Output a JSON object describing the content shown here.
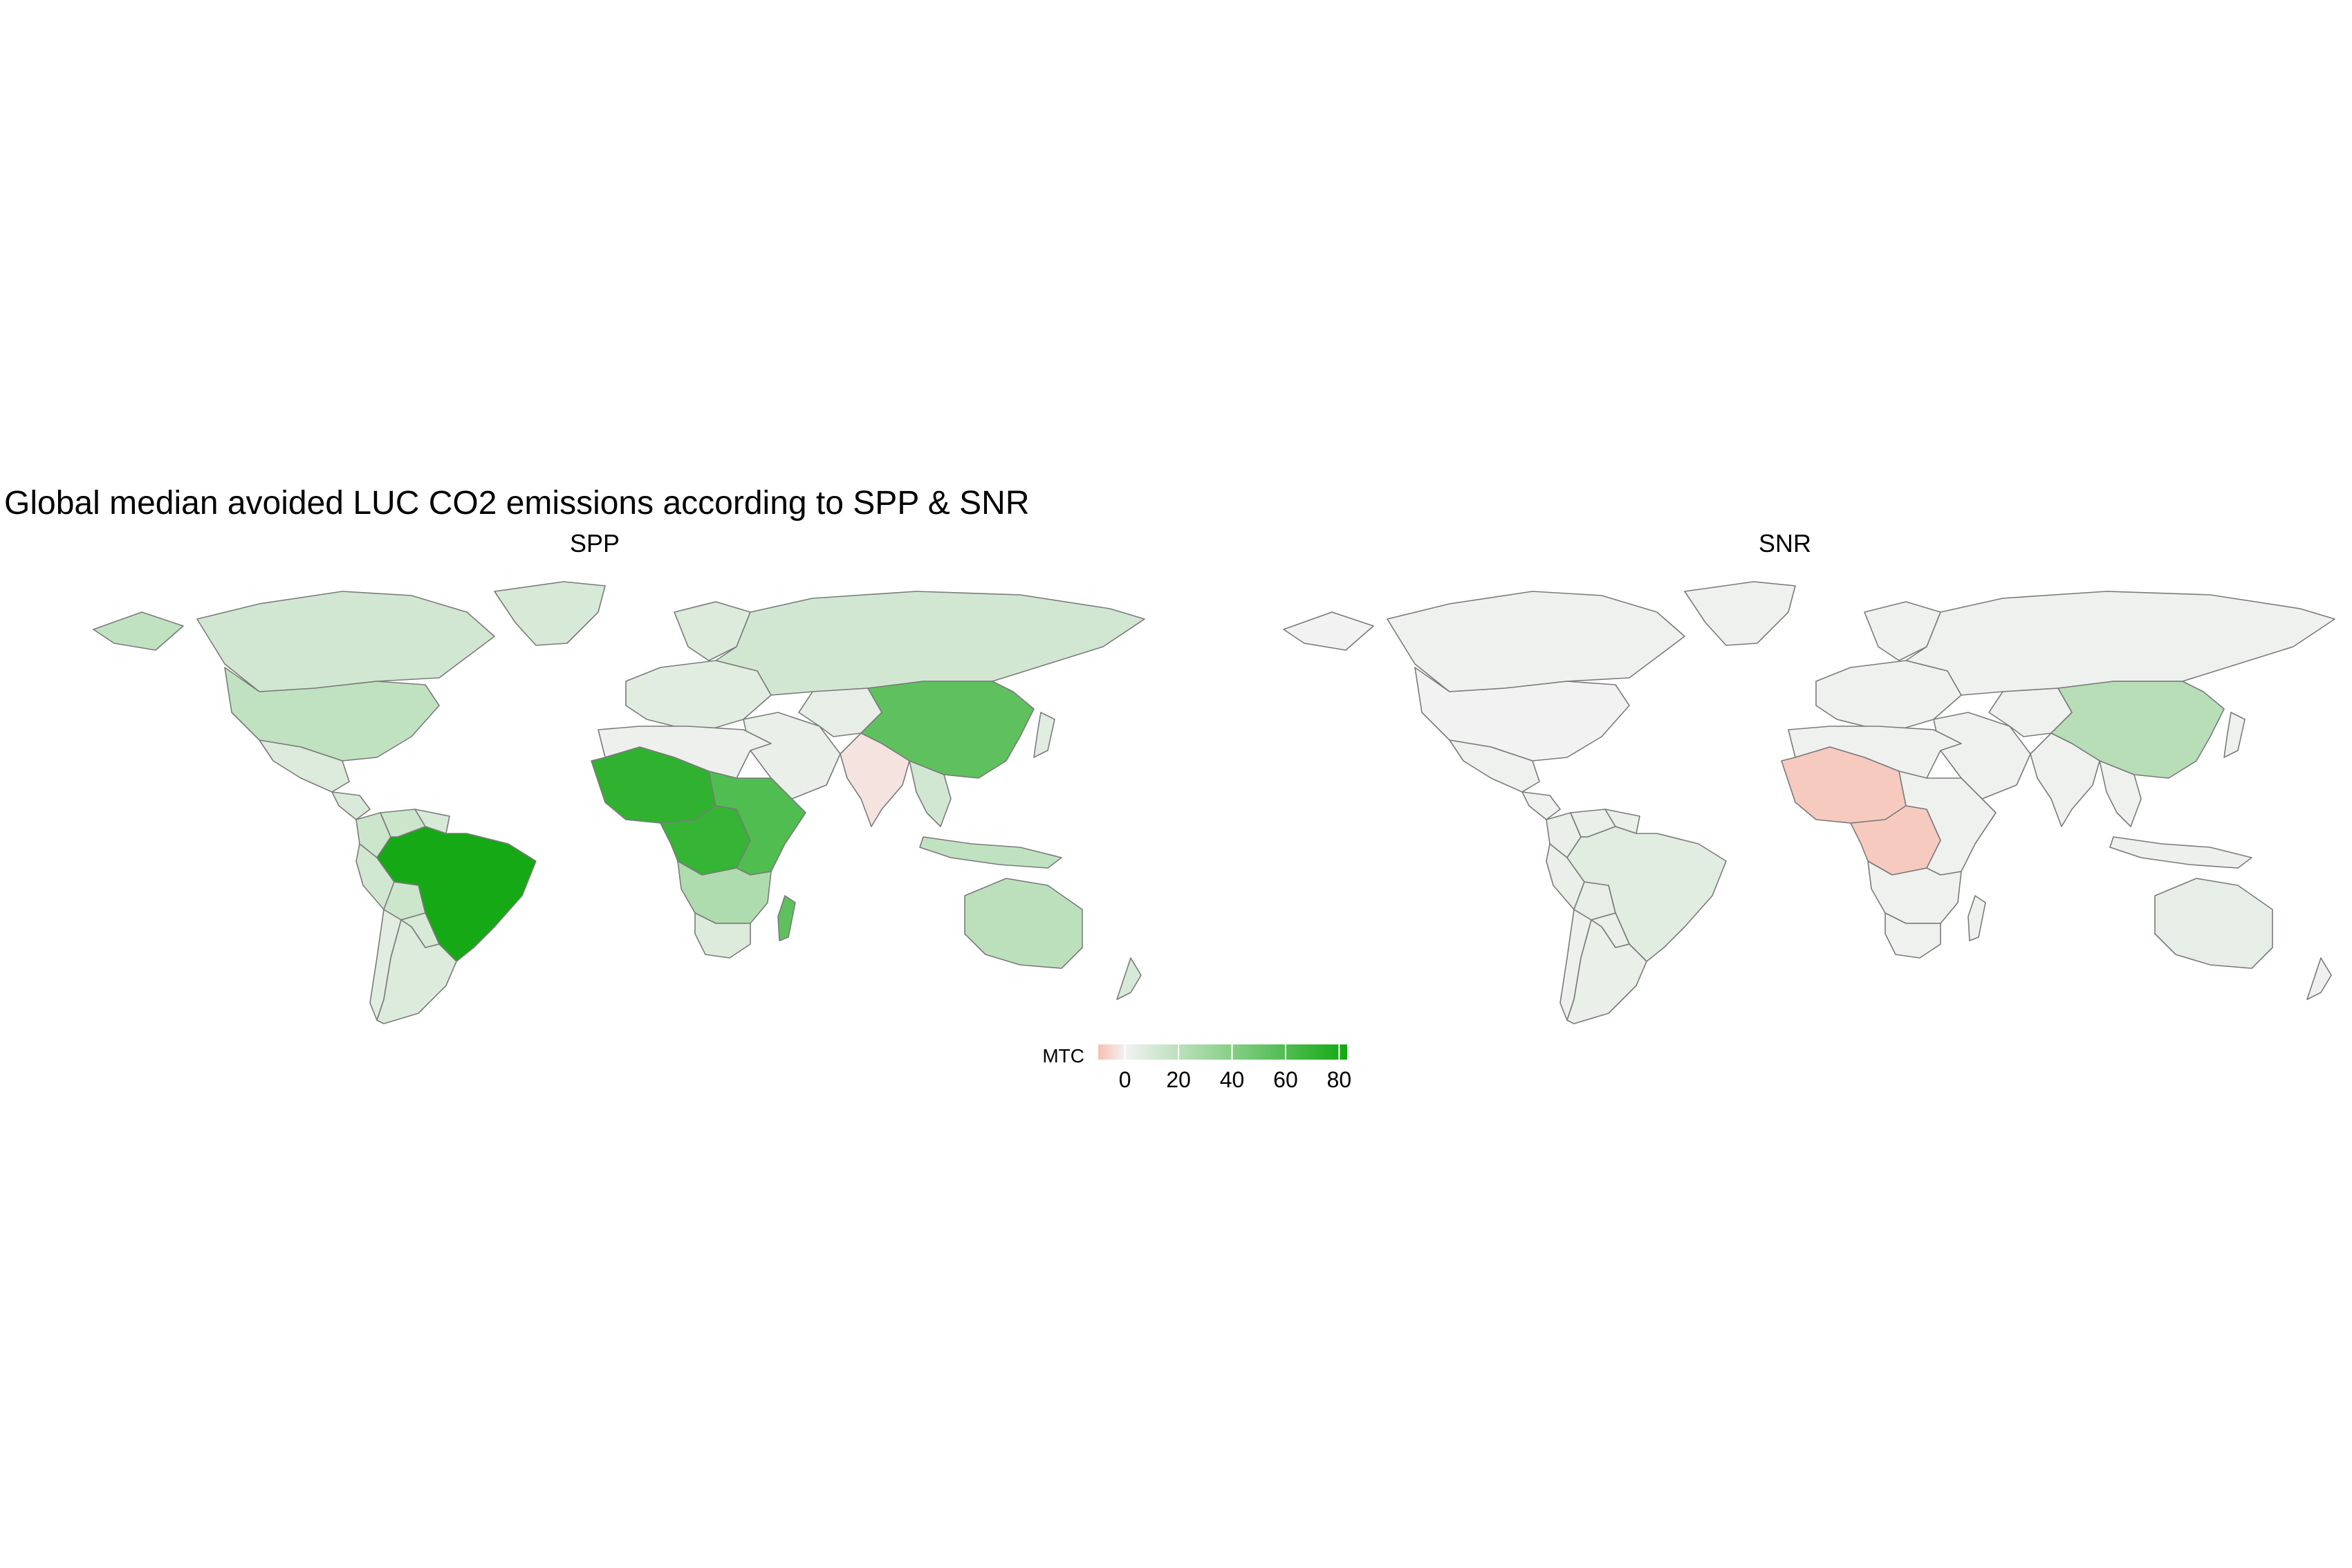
{
  "title": "Global median avoided LUC CO2 emissions according to SPP & SNR",
  "colors": {
    "low": "#f7c0b2",
    "mid": "#f2f2f2",
    "high": "#12a812",
    "border": "#7a7a7a",
    "background": "#ffffff"
  },
  "legend": {
    "title": "MTC",
    "domain": [
      -10,
      83
    ],
    "ticks": [
      0,
      20,
      40,
      60,
      80
    ],
    "tick_labels": [
      "0",
      "20",
      "40",
      "60",
      "80"
    ]
  },
  "chart_data": {
    "type": "choropleth",
    "title": "Global median avoided LUC CO2 emissions according to SPP & SNR",
    "projection": "equirectangular world map",
    "facets": [
      {
        "name": "SPP",
        "regions": [
          {
            "region": "Canada",
            "value": 12
          },
          {
            "region": "Greenland",
            "value": 10
          },
          {
            "region": "United States",
            "value": 18
          },
          {
            "region": "Mexico",
            "value": 8
          },
          {
            "region": "Central America",
            "value": 9
          },
          {
            "region": "Colombia",
            "value": 14
          },
          {
            "region": "Venezuela",
            "value": 14
          },
          {
            "region": "Guianas",
            "value": 10
          },
          {
            "region": "Peru",
            "value": 12
          },
          {
            "region": "Bolivia",
            "value": 14
          },
          {
            "region": "Brazil",
            "value": 82
          },
          {
            "region": "Paraguay",
            "value": 10
          },
          {
            "region": "Chile",
            "value": 6
          },
          {
            "region": "Argentina",
            "value": 8
          },
          {
            "region": "Europe",
            "value": 6
          },
          {
            "region": "Scandinavia",
            "value": 8
          },
          {
            "region": "Russia",
            "value": 12
          },
          {
            "region": "Middle East",
            "value": 3
          },
          {
            "region": "Central Asia",
            "value": 4
          },
          {
            "region": "China",
            "value": 55
          },
          {
            "region": "India",
            "value": -3
          },
          {
            "region": "Southeast Asia",
            "value": 12
          },
          {
            "region": "Indonesia",
            "value": 18
          },
          {
            "region": "Japan",
            "value": 6
          },
          {
            "region": "Australia",
            "value": 20
          },
          {
            "region": "New Zealand",
            "value": 10
          },
          {
            "region": "North Africa",
            "value": 2
          },
          {
            "region": "West Africa",
            "value": 72
          },
          {
            "region": "Central Africa",
            "value": 70
          },
          {
            "region": "East Africa",
            "value": 60
          },
          {
            "region": "Southern Africa",
            "value": 25
          },
          {
            "region": "South Africa",
            "value": 8
          },
          {
            "region": "Madagascar",
            "value": 55
          }
        ]
      },
      {
        "name": "SNR",
        "regions": [
          {
            "region": "Canada",
            "value": 1
          },
          {
            "region": "Greenland",
            "value": 1
          },
          {
            "region": "United States",
            "value": 0
          },
          {
            "region": "Mexico",
            "value": 1
          },
          {
            "region": "Central America",
            "value": 1
          },
          {
            "region": "Colombia",
            "value": 3
          },
          {
            "region": "Venezuela",
            "value": 3
          },
          {
            "region": "Guianas",
            "value": 3
          },
          {
            "region": "Peru",
            "value": 3
          },
          {
            "region": "Bolivia",
            "value": 4
          },
          {
            "region": "Brazil",
            "value": 6
          },
          {
            "region": "Paraguay",
            "value": 3
          },
          {
            "region": "Chile",
            "value": 2
          },
          {
            "region": "Argentina",
            "value": 3
          },
          {
            "region": "Europe",
            "value": 1
          },
          {
            "region": "Scandinavia",
            "value": 1
          },
          {
            "region": "Russia",
            "value": 1
          },
          {
            "region": "Middle East",
            "value": 1
          },
          {
            "region": "Central Asia",
            "value": 1
          },
          {
            "region": "China",
            "value": 22
          },
          {
            "region": "India",
            "value": 1
          },
          {
            "region": "Southeast Asia",
            "value": 1
          },
          {
            "region": "Indonesia",
            "value": 2
          },
          {
            "region": "Japan",
            "value": 1
          },
          {
            "region": "Australia",
            "value": 4
          },
          {
            "region": "New Zealand",
            "value": 1
          },
          {
            "region": "North Africa",
            "value": 1
          },
          {
            "region": "West Africa",
            "value": -8
          },
          {
            "region": "Central Africa",
            "value": -8
          },
          {
            "region": "East Africa",
            "value": 1
          },
          {
            "region": "Southern Africa",
            "value": 1
          },
          {
            "region": "South Africa",
            "value": 1
          },
          {
            "region": "Madagascar",
            "value": 1
          }
        ]
      }
    ]
  }
}
